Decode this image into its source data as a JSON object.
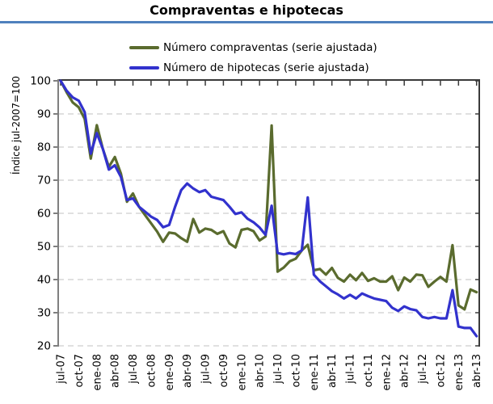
{
  "title": "Compraventas e hipotecas",
  "colors": {
    "title_rule": "#4f81bd",
    "grid": "#c2c2c2",
    "left_axis": "#7f7f7f",
    "border": "#3a3a3a",
    "text": "#000000"
  },
  "legend": {
    "items": [
      {
        "label": "Número compraventas (serie ajustada)",
        "color": "#5a6b2e"
      },
      {
        "label": "Número de hipotecas (serie ajustada)",
        "color": "#3232cd"
      }
    ]
  },
  "chart_data": {
    "type": "line",
    "title": "Compraventas e hipotecas",
    "xlabel": "",
    "ylabel": "Índice jul-2007=100",
    "ylim": [
      20,
      100
    ],
    "yticks": [
      20,
      30,
      40,
      50,
      60,
      70,
      80,
      90,
      100
    ],
    "grid": "horizontal-dashed",
    "legend_position": "top-center",
    "x_tick_labels": [
      "jul-07",
      "oct-07",
      "ene-08",
      "abr-08",
      "jul-08",
      "oct-08",
      "ene-09",
      "abr-09",
      "jul-09",
      "oct-09",
      "ene-10",
      "abr-10",
      "jul-10",
      "oct-10",
      "ene-11",
      "abr-11",
      "jul-11",
      "oct-11",
      "ene-12",
      "abr-12",
      "jul-12",
      "oct-12",
      "ene-13",
      "abr-13"
    ],
    "months": [
      "jul-07",
      "ago-07",
      "sep-07",
      "oct-07",
      "nov-07",
      "dic-07",
      "ene-08",
      "feb-08",
      "mar-08",
      "abr-08",
      "may-08",
      "jun-08",
      "jul-08",
      "ago-08",
      "sep-08",
      "oct-08",
      "nov-08",
      "dic-08",
      "ene-09",
      "feb-09",
      "mar-09",
      "abr-09",
      "may-09",
      "jun-09",
      "jul-09",
      "ago-09",
      "sep-09",
      "oct-09",
      "nov-09",
      "dic-09",
      "ene-10",
      "feb-10",
      "mar-10",
      "abr-10",
      "may-10",
      "jun-10",
      "jul-10",
      "ago-10",
      "sep-10",
      "oct-10",
      "nov-10",
      "dic-10",
      "ene-11",
      "feb-11",
      "mar-11",
      "abr-11",
      "may-11",
      "jun-11",
      "jul-11",
      "ago-11",
      "sep-11",
      "oct-11",
      "nov-11",
      "dic-11",
      "ene-12",
      "feb-12",
      "mar-12",
      "abr-12",
      "may-12",
      "jun-12",
      "jul-12",
      "ago-12",
      "sep-12",
      "oct-12",
      "nov-12",
      "dic-12",
      "ene-13",
      "feb-13",
      "mar-13",
      "abr-13"
    ],
    "series": [
      {
        "name": "Número compraventas (serie ajustada)",
        "color": "#5a6b2e",
        "values": [
          100,
          96.5,
          93.5,
          92,
          88.5,
          76.5,
          86.6,
          79.5,
          74,
          77,
          72,
          63.5,
          66,
          62,
          59.5,
          57,
          54.5,
          51.4,
          54.2,
          53.9,
          52.5,
          51.4,
          58.3,
          54.2,
          55.4,
          55,
          53.8,
          54.6,
          50.9,
          49.7,
          55,
          55.4,
          54.6,
          51.8,
          53,
          86.5,
          42.4,
          43.6,
          45.5,
          46.3,
          48.8,
          50.5,
          42.8,
          43.2,
          41.5,
          43.5,
          40.5,
          39.4,
          41.5,
          39.8,
          42,
          39.6,
          40.4,
          39.4,
          39.4,
          41,
          36.8,
          40.6,
          39.4,
          41.5,
          41.3,
          37.8,
          39.4,
          40.8,
          39.4,
          50.4,
          32.2,
          31,
          37,
          36.2
        ]
      },
      {
        "name": "Número de hipotecas (serie ajustada)",
        "color": "#3232cd",
        "values": [
          100,
          97,
          95,
          94,
          90.5,
          78,
          84.2,
          79.5,
          73.2,
          74.5,
          71,
          64,
          64.5,
          62,
          60.5,
          59,
          58,
          55.8,
          56.5,
          62,
          67,
          69,
          67.5,
          66.4,
          67,
          65,
          64.5,
          64,
          62,
          59.8,
          60.3,
          58.4,
          57.3,
          55.7,
          53.5,
          62.3,
          48,
          47.6,
          48,
          47.7,
          48.8,
          64.8,
          41.5,
          39.5,
          38,
          36.5,
          35.5,
          34.3,
          35.4,
          34.3,
          35.8,
          35,
          34.3,
          33.9,
          33.5,
          31.5,
          30.5,
          31.9,
          31.1,
          30.7,
          28.7,
          28.3,
          28.7,
          28.3,
          28.3,
          36.8,
          25.8,
          25.4,
          25.4,
          22.9
        ]
      }
    ]
  }
}
